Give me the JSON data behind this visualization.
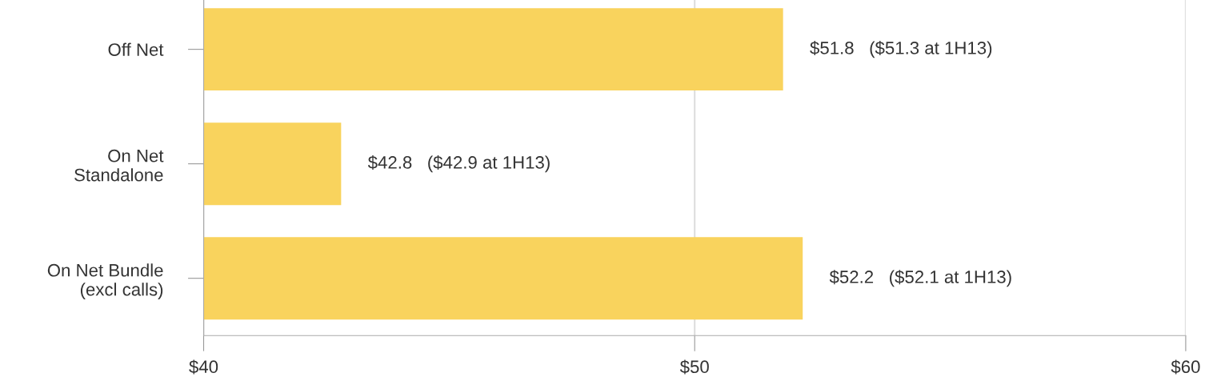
{
  "chart_data": {
    "type": "bar",
    "orientation": "horizontal",
    "categories": [
      "Off Net",
      "On Net\nStandalone",
      "On Net Bundle\n(excl calls)"
    ],
    "values": [
      51.8,
      42.8,
      52.2
    ],
    "color": "#f9d35d",
    "value_labels": [
      "$51.8   ($51.3 at 1H13)",
      "$42.8   ($42.9 at 1H13)",
      "$52.2   ($52.1 at 1H13)"
    ],
    "xlim": [
      40,
      60
    ],
    "xticks": [
      {
        "value": 40,
        "label": "$40"
      },
      {
        "value": 50,
        "label": "$50"
      },
      {
        "value": 60,
        "label": "$60"
      }
    ],
    "grid": "x",
    "legend": false
  }
}
